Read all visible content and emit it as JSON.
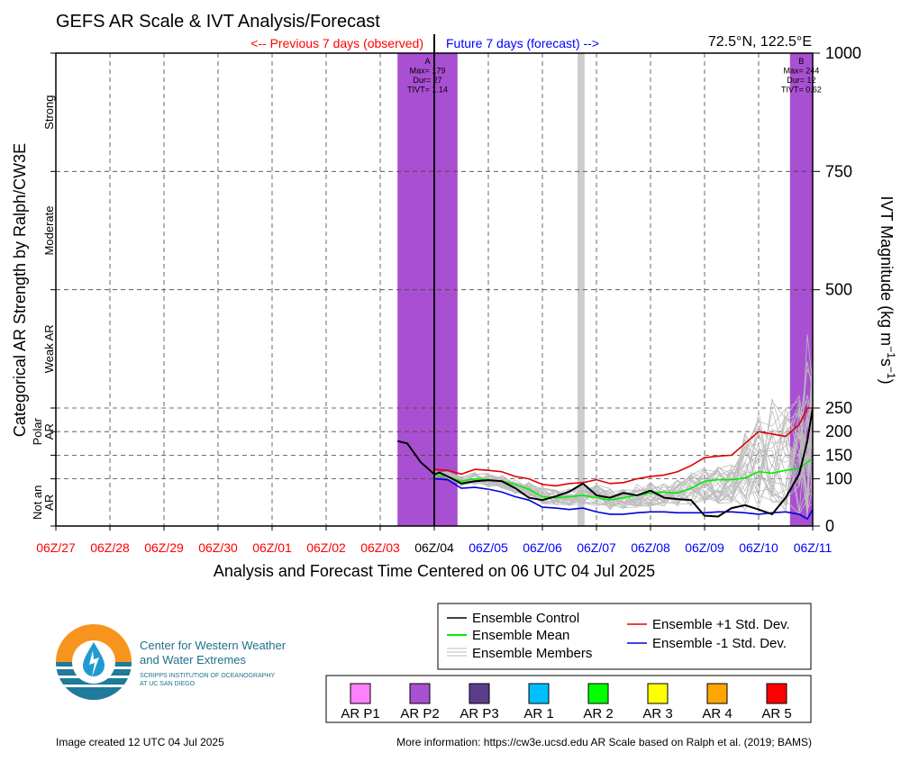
{
  "chart_data": {
    "type": "line",
    "title": "GEFS AR Scale & IVT Analysis/Forecast",
    "location": "72.5°N, 122.5°E",
    "observed_label": "<-- Previous 7 days (observed)",
    "forecast_label": "Future 7 days (forecast) -->",
    "xlabel": "Analysis and Forecast Time Centered on 06 UTC 04 Jul 2025",
    "ylabel_left": "Categorical AR Strength by Ralph/CW3E",
    "ylabel_right": "IVT Magnitude (kg m⁻¹s⁻¹)",
    "x_ticks": [
      "06Z/27",
      "06Z/28",
      "06Z/29",
      "06Z/30",
      "06Z/01",
      "06Z/02",
      "06Z/03",
      "06Z/04",
      "06Z/05",
      "06Z/06",
      "06Z/07",
      "06Z/08",
      "06Z/09",
      "06Z/10",
      "06Z/11"
    ],
    "x_tick_colors": [
      "#ff0000",
      "#ff0000",
      "#ff0000",
      "#ff0000",
      "#ff0000",
      "#ff0000",
      "#ff0000",
      "#000000",
      "#0000ff",
      "#0000ff",
      "#0000ff",
      "#0000ff",
      "#0000ff",
      "#0000ff",
      "#0000ff"
    ],
    "x_range_days": [
      -7,
      7
    ],
    "y_ticks": [
      0,
      100,
      150,
      200,
      250,
      500,
      750,
      1000
    ],
    "ylim": [
      0,
      1000
    ],
    "grid": true,
    "categories": [
      {
        "label": "Strong",
        "range": [
          750,
          1000
        ]
      },
      {
        "label": "Moderate",
        "range": [
          500,
          750
        ]
      },
      {
        "label": "Weak AR",
        "range": [
          250,
          500
        ]
      },
      {
        "label": "Polar AR",
        "range": [
          150,
          250
        ]
      },
      {
        "label": "Not an AR",
        "range": [
          0,
          100
        ]
      }
    ],
    "ar_events": [
      {
        "id": "A",
        "start_day": -0.68,
        "end_day": 0.43,
        "category_color": "#a94fd1",
        "max_label": "Max= 179",
        "dur_label": "Dur= 27",
        "tivt_label": "TIVT= 1.14"
      },
      {
        "id": "B",
        "start_day": 6.58,
        "end_day": 7.0,
        "category_color": "#a94fd1",
        "max_label": "Max= 244",
        "dur_label": "Dur= 12",
        "tivt_label": "TIVT= 0.62"
      }
    ],
    "gray_band_day": [
      2.65,
      2.78
    ],
    "series": [
      {
        "name": "Ensemble Control",
        "color": "#000000",
        "x": [
          -0.68,
          -0.5,
          -0.25,
          0,
          0.1,
          0.25,
          0.5,
          0.75,
          1,
          1.25,
          1.5,
          1.75,
          2,
          2.25,
          2.5,
          2.75,
          3,
          3.25,
          3.5,
          3.75,
          4,
          4.25,
          4.5,
          4.75,
          5,
          5.25,
          5.5,
          5.75,
          6,
          6.25,
          6.5,
          6.75,
          6.9,
          7
        ],
        "y": [
          180,
          175,
          135,
          110,
          113,
          105,
          90,
          95,
          97,
          95,
          80,
          60,
          55,
          63,
          73,
          90,
          65,
          60,
          70,
          65,
          75,
          60,
          57,
          55,
          22,
          20,
          38,
          44,
          35,
          25,
          60,
          110,
          180,
          250
        ]
      },
      {
        "name": "Ensemble Mean",
        "color": "#00ee00",
        "x": [
          0,
          0.25,
          0.5,
          0.75,
          1,
          1.25,
          1.5,
          1.75,
          2,
          2.25,
          2.5,
          2.75,
          3,
          3.25,
          3.5,
          3.75,
          4,
          4.25,
          4.5,
          4.75,
          5,
          5.25,
          5.5,
          5.75,
          6,
          6.25,
          6.5,
          6.75,
          6.9,
          7
        ],
        "y": [
          108,
          105,
          95,
          100,
          98,
          95,
          88,
          78,
          62,
          60,
          62,
          65,
          60,
          55,
          60,
          65,
          70,
          72,
          70,
          80,
          95,
          98,
          98,
          102,
          115,
          112,
          118,
          122,
          135,
          142
        ]
      },
      {
        "name": "Ensemble +1 Std. Dev.",
        "color": "#e00000",
        "x": [
          0,
          0.25,
          0.5,
          0.75,
          1,
          1.25,
          1.5,
          1.75,
          2,
          2.25,
          2.5,
          2.75,
          3,
          3.25,
          3.5,
          3.75,
          4,
          4.25,
          4.5,
          4.75,
          5,
          5.25,
          5.5,
          5.75,
          6,
          6.25,
          6.5,
          6.75,
          6.9,
          7
        ],
        "y": [
          120,
          118,
          110,
          120,
          118,
          115,
          105,
          100,
          88,
          85,
          90,
          92,
          98,
          90,
          92,
          100,
          105,
          108,
          115,
          128,
          145,
          148,
          150,
          175,
          200,
          195,
          190,
          215,
          250,
          250
        ]
      },
      {
        "name": "Ensemble -1 Std. Dev.",
        "color": "#0000dd",
        "x": [
          0,
          0.25,
          0.5,
          0.75,
          1,
          1.25,
          1.5,
          1.75,
          2,
          2.25,
          2.5,
          2.75,
          3,
          3.25,
          3.5,
          3.75,
          4,
          4.25,
          4.5,
          4.75,
          5,
          5.25,
          5.5,
          5.75,
          6,
          6.25,
          6.5,
          6.75,
          6.9,
          7
        ],
        "y": [
          100,
          98,
          80,
          82,
          78,
          72,
          62,
          55,
          40,
          38,
          35,
          38,
          30,
          25,
          25,
          28,
          30,
          30,
          28,
          28,
          28,
          30,
          30,
          28,
          25,
          28,
          30,
          25,
          15,
          35
        ]
      }
    ],
    "legend_entries": [
      "Ensemble Control",
      "Ensemble Mean",
      "Ensemble Members",
      "Ensemble +1 Std. Dev.",
      "Ensemble -1 Std. Dev."
    ],
    "legend_placement": "bottom-right"
  },
  "ar_scale_legend": [
    {
      "label": "AR P1",
      "color": "#ff80ff"
    },
    {
      "label": "AR P2",
      "color": "#a94fd1"
    },
    {
      "label": "AR P3",
      "color": "#5a3e8a"
    },
    {
      "label": "AR 1",
      "color": "#00bfff"
    },
    {
      "label": "AR 2",
      "color": "#00ff00"
    },
    {
      "label": "AR 3",
      "color": "#ffff00"
    },
    {
      "label": "AR 4",
      "color": "#ffa500"
    },
    {
      "label": "AR 5",
      "color": "#ff0000"
    }
  ],
  "logo": {
    "org_line1": "Center for Western Weather",
    "org_line2": "and Water Extremes",
    "sub_line1": "SCRIPPS INSTITUTION OF OCEANOGRAPHY",
    "sub_line2": "AT UC SAN DIEGO"
  },
  "footer": {
    "created": "Image created 12 UTC 04 Jul 2025",
    "more_info": "More information: https://cw3e.ucsd.edu AR Scale based on Ralph et al. (2019; BAMS)"
  }
}
